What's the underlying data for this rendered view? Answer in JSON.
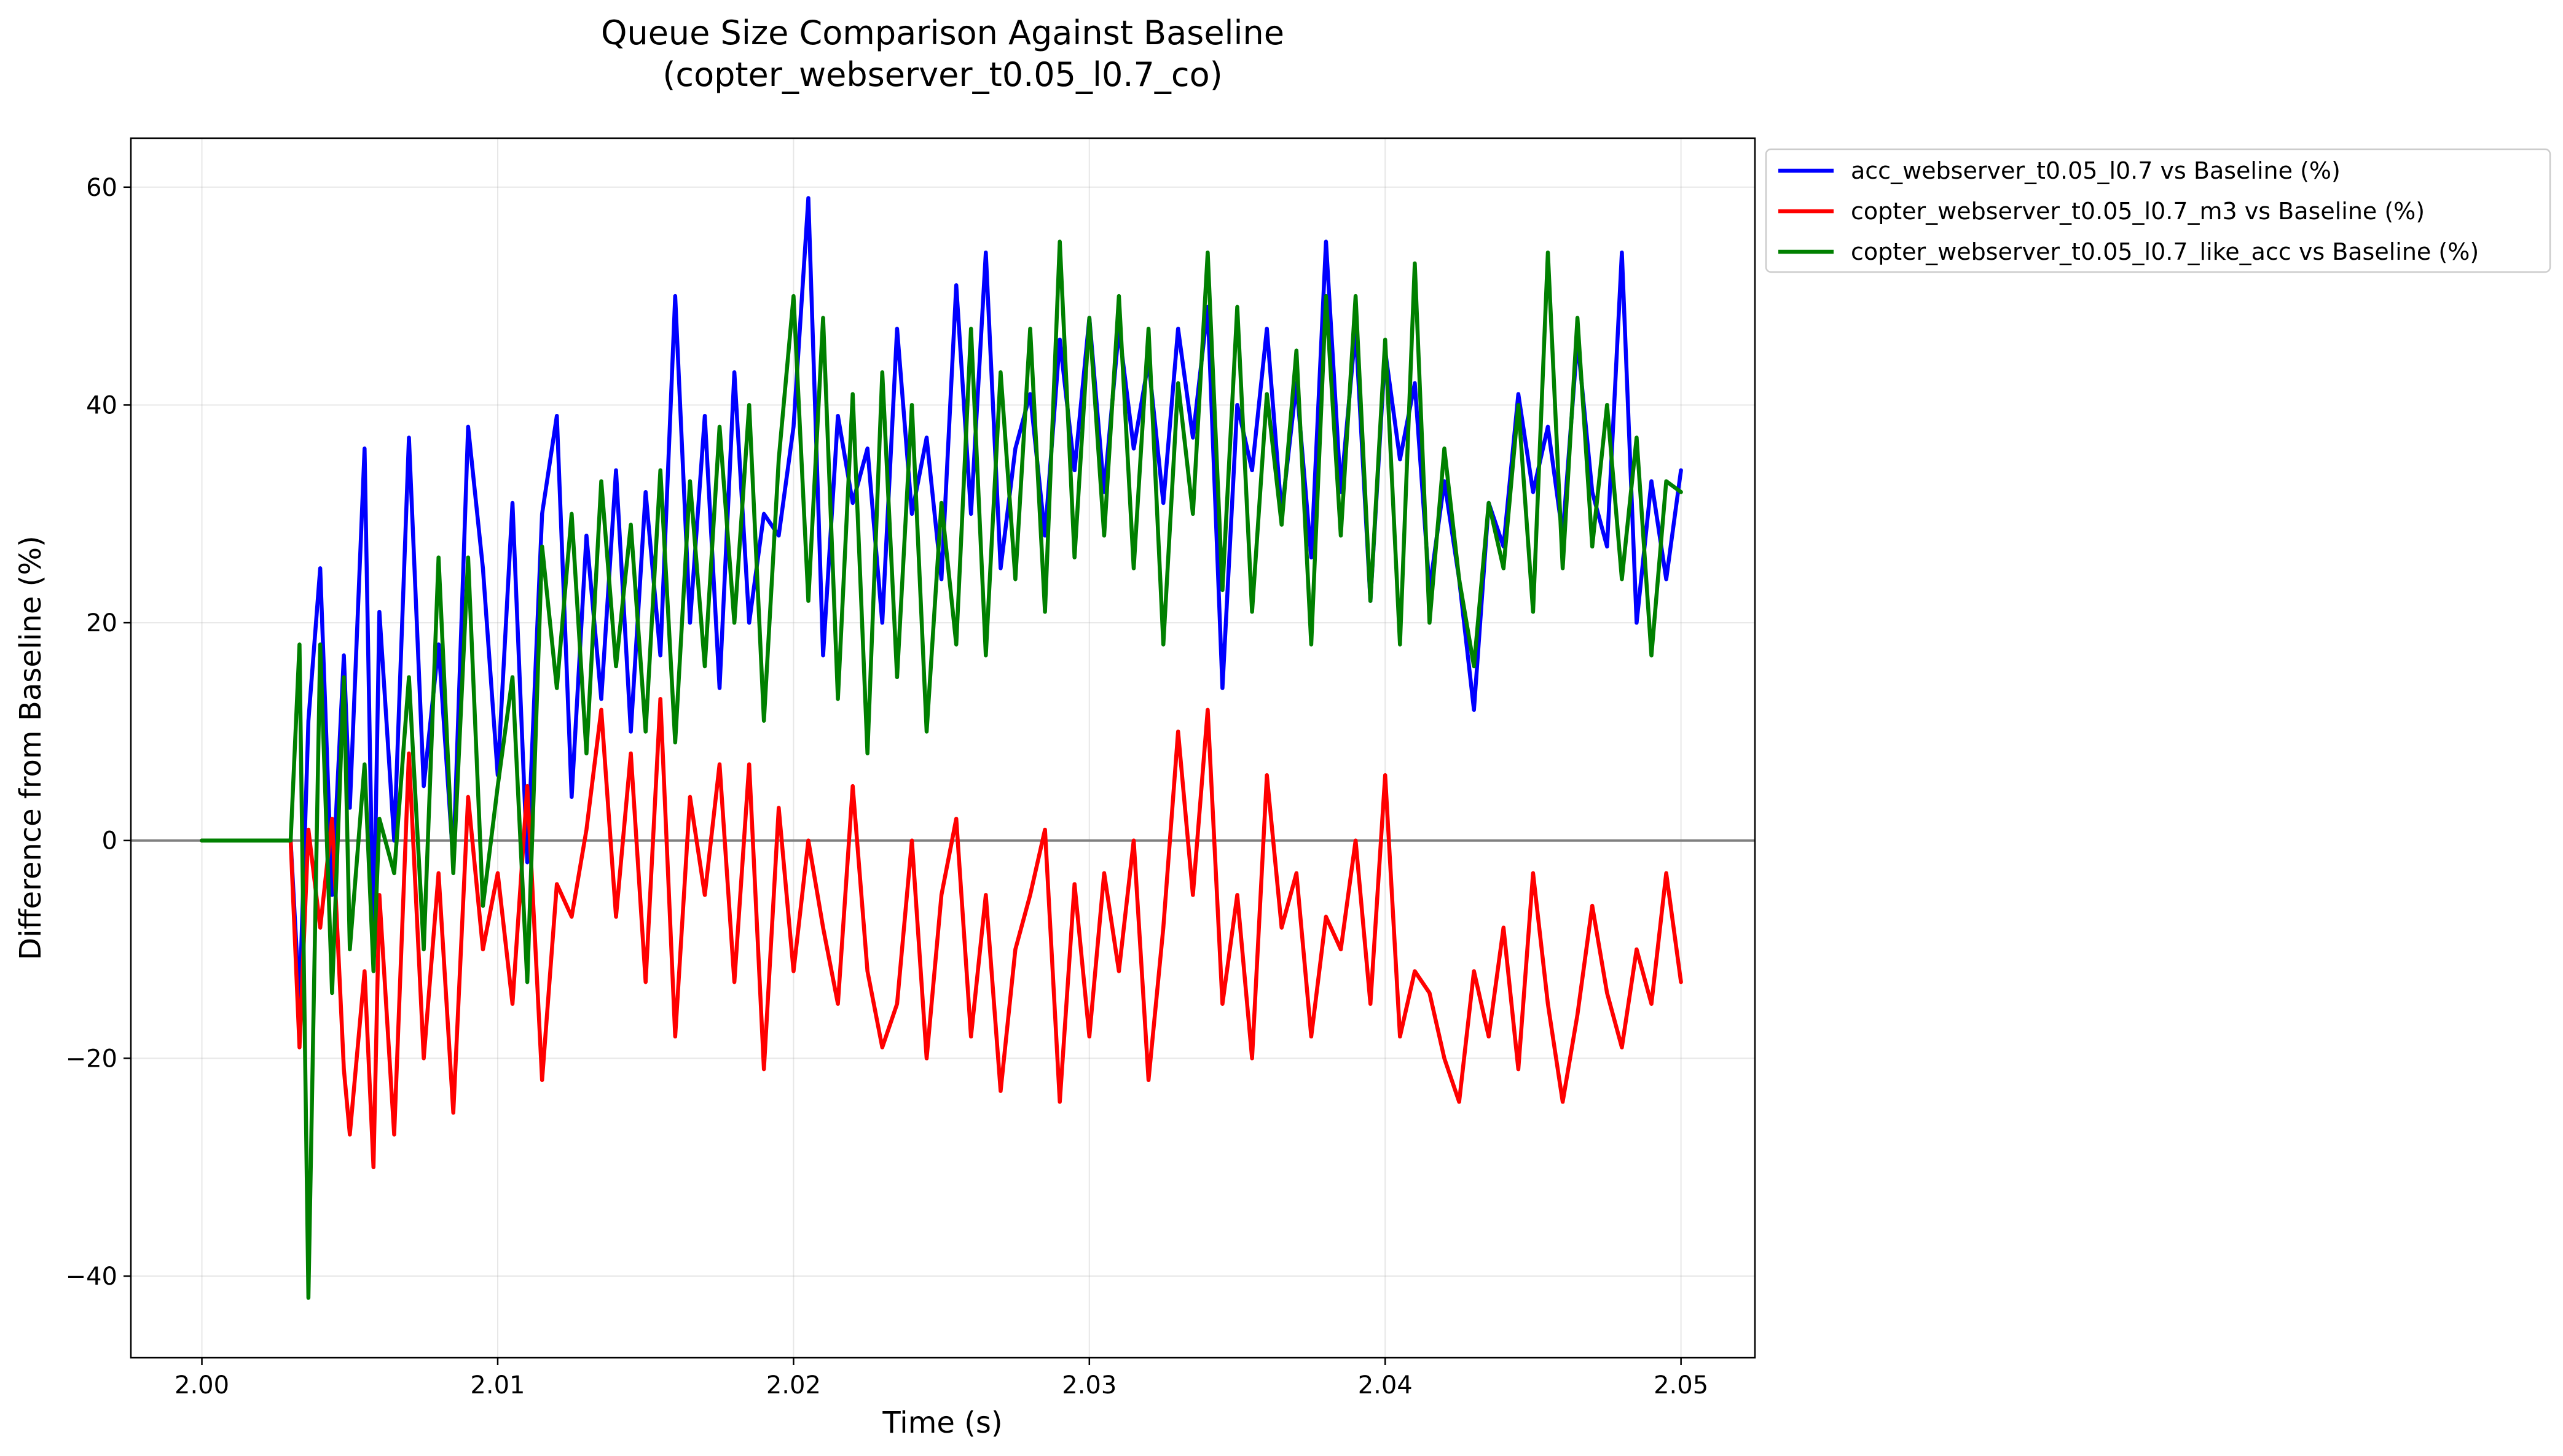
{
  "chart_data": {
    "type": "line",
    "title": "Queue Size Comparison Against Baseline",
    "subtitle": "(copter_webserver_t0.05_l0.7_co)",
    "xlabel": "Time (s)",
    "ylabel": "Difference from Baseline (%)",
    "xlim": [
      1.9976,
      2.0525
    ],
    "ylim": [
      -47.5,
      64.5
    ],
    "x_ticks": [
      2.0,
      2.01,
      2.02,
      2.03,
      2.04,
      2.05
    ],
    "x_tick_labels": [
      "2.00",
      "2.01",
      "2.02",
      "2.03",
      "2.04",
      "2.05"
    ],
    "y_ticks": [
      -40,
      -20,
      0,
      20,
      40,
      60
    ],
    "y_tick_labels": [
      "−40",
      "−20",
      "0",
      "20",
      "40",
      "60"
    ],
    "grid": true,
    "reference_line": 0,
    "legend_position": "outside-top-right",
    "series": [
      {
        "name": "acc_webserver_t0.05_l0.7 vs Baseline (%)",
        "color": "#0000ff",
        "x": [
          2.0,
          2.003,
          2.0033,
          2.0036,
          2.004,
          2.0044,
          2.0048,
          2.005,
          2.0055,
          2.0058,
          2.006,
          2.0065,
          2.007,
          2.0075,
          2.008,
          2.0085,
          2.009,
          2.0095,
          2.01,
          2.0105,
          2.011,
          2.0115,
          2.012,
          2.0125,
          2.013,
          2.0135,
          2.014,
          2.0145,
          2.015,
          2.0155,
          2.016,
          2.0165,
          2.017,
          2.0175,
          2.018,
          2.0185,
          2.019,
          2.0195,
          2.02,
          2.0205,
          2.021,
          2.0215,
          2.022,
          2.0225,
          2.023,
          2.0235,
          2.024,
          2.0245,
          2.025,
          2.0255,
          2.026,
          2.0265,
          2.027,
          2.0275,
          2.028,
          2.0285,
          2.029,
          2.0295,
          2.03,
          2.0305,
          2.031,
          2.0315,
          2.032,
          2.0325,
          2.033,
          2.0335,
          2.034,
          2.0345,
          2.035,
          2.0355,
          2.036,
          2.0365,
          2.037,
          2.0375,
          2.038,
          2.0385,
          2.039,
          2.0395,
          2.04,
          2.0405,
          2.041,
          2.0415,
          2.042,
          2.0425,
          2.043,
          2.0435,
          2.044,
          2.0445,
          2.045,
          2.0455,
          2.046,
          2.0465,
          2.047,
          2.0475,
          2.048,
          2.0485,
          2.049,
          2.0495,
          2.05
        ],
        "values": [
          0,
          0,
          -15,
          11,
          25,
          -5,
          17,
          3,
          36,
          -10,
          21,
          0,
          37,
          5,
          18,
          -2,
          38,
          25,
          6,
          31,
          -2,
          30,
          39,
          4,
          28,
          13,
          34,
          10,
          32,
          17,
          50,
          20,
          39,
          14,
          43,
          20,
          30,
          28,
          38,
          59,
          17,
          39,
          31,
          36,
          20,
          47,
          30,
          37,
          24,
          51,
          30,
          54,
          25,
          36,
          41,
          28,
          46,
          34,
          48,
          32,
          47,
          36,
          44,
          31,
          47,
          37,
          49,
          14,
          40,
          34,
          47,
          30,
          42,
          26,
          55,
          32,
          47,
          22,
          45,
          35,
          42,
          23,
          33,
          24,
          12,
          31,
          27,
          41,
          32,
          38,
          28,
          46,
          32,
          27,
          54,
          20,
          33,
          24,
          34
        ]
      },
      {
        "name": "copter_webserver_t0.05_l0.7_m3 vs Baseline (%)",
        "color": "#ff0000",
        "x": [
          2.0,
          2.003,
          2.0033,
          2.0036,
          2.004,
          2.0044,
          2.0048,
          2.005,
          2.0055,
          2.0058,
          2.006,
          2.0065,
          2.007,
          2.0075,
          2.008,
          2.0085,
          2.009,
          2.0095,
          2.01,
          2.0105,
          2.011,
          2.0115,
          2.012,
          2.0125,
          2.013,
          2.0135,
          2.014,
          2.0145,
          2.015,
          2.0155,
          2.016,
          2.0165,
          2.017,
          2.0175,
          2.018,
          2.0185,
          2.019,
          2.0195,
          2.02,
          2.0205,
          2.021,
          2.0215,
          2.022,
          2.0225,
          2.023,
          2.0235,
          2.024,
          2.0245,
          2.025,
          2.0255,
          2.026,
          2.0265,
          2.027,
          2.0275,
          2.028,
          2.0285,
          2.029,
          2.0295,
          2.03,
          2.0305,
          2.031,
          2.0315,
          2.032,
          2.0325,
          2.033,
          2.0335,
          2.034,
          2.0345,
          2.035,
          2.0355,
          2.036,
          2.0365,
          2.037,
          2.0375,
          2.038,
          2.0385,
          2.039,
          2.0395,
          2.04,
          2.0405,
          2.041,
          2.0415,
          2.042,
          2.0425,
          2.043,
          2.0435,
          2.044,
          2.0445,
          2.045,
          2.0455,
          2.046,
          2.0465,
          2.047,
          2.0475,
          2.048,
          2.0485,
          2.049,
          2.0495,
          2.05
        ],
        "values": [
          0,
          0,
          -19,
          1,
          -8,
          2,
          -21,
          -27,
          -12,
          -30,
          -5,
          -27,
          8,
          -20,
          -3,
          -25,
          4,
          -10,
          -3,
          -15,
          5,
          -22,
          -4,
          -7,
          1,
          12,
          -7,
          8,
          -13,
          13,
          -18,
          4,
          -5,
          7,
          -13,
          7,
          -21,
          3,
          -12,
          0,
          -8,
          -15,
          5,
          -12,
          -19,
          -15,
          0,
          -20,
          -5,
          2,
          -18,
          -5,
          -23,
          -10,
          -5,
          1,
          -24,
          -4,
          -18,
          -3,
          -12,
          0,
          -22,
          -8,
          10,
          -5,
          12,
          -15,
          -5,
          -20,
          6,
          -8,
          -3,
          -18,
          -7,
          -10,
          0,
          -15,
          6,
          -18,
          -12,
          -14,
          -20,
          -24,
          -12,
          -18,
          -8,
          -21,
          -3,
          -15,
          -24,
          -16,
          -6,
          -14,
          -19,
          -10,
          -15,
          -3,
          -13
        ]
      },
      {
        "name": "copter_webserver_t0.05_l0.7_like_acc vs Baseline (%)",
        "color": "#008000",
        "x": [
          2.0,
          2.003,
          2.0033,
          2.0036,
          2.004,
          2.0044,
          2.0048,
          2.005,
          2.0055,
          2.0058,
          2.006,
          2.0065,
          2.007,
          2.0075,
          2.008,
          2.0085,
          2.009,
          2.0095,
          2.01,
          2.0105,
          2.011,
          2.0115,
          2.012,
          2.0125,
          2.013,
          2.0135,
          2.014,
          2.0145,
          2.015,
          2.0155,
          2.016,
          2.0165,
          2.017,
          2.0175,
          2.018,
          2.0185,
          2.019,
          2.0195,
          2.02,
          2.0205,
          2.021,
          2.0215,
          2.022,
          2.0225,
          2.023,
          2.0235,
          2.024,
          2.0245,
          2.025,
          2.0255,
          2.026,
          2.0265,
          2.027,
          2.0275,
          2.028,
          2.0285,
          2.029,
          2.0295,
          2.03,
          2.0305,
          2.031,
          2.0315,
          2.032,
          2.0325,
          2.033,
          2.0335,
          2.034,
          2.0345,
          2.035,
          2.0355,
          2.036,
          2.0365,
          2.037,
          2.0375,
          2.038,
          2.0385,
          2.039,
          2.0395,
          2.04,
          2.0405,
          2.041,
          2.0415,
          2.042,
          2.0425,
          2.043,
          2.0435,
          2.044,
          2.0445,
          2.045,
          2.0455,
          2.046,
          2.0465,
          2.047,
          2.0475,
          2.048,
          2.0485,
          2.049,
          2.0495,
          2.05
        ],
        "values": [
          0,
          0,
          18,
          -42,
          18,
          -14,
          15,
          -10,
          7,
          -12,
          2,
          -3,
          15,
          -10,
          26,
          -3,
          26,
          -6,
          5,
          15,
          -13,
          27,
          14,
          30,
          8,
          33,
          16,
          29,
          10,
          34,
          9,
          33,
          16,
          38,
          20,
          40,
          11,
          35,
          50,
          22,
          48,
          13,
          41,
          8,
          43,
          15,
          40,
          10,
          31,
          18,
          47,
          17,
          43,
          24,
          47,
          21,
          55,
          26,
          48,
          28,
          50,
          25,
          47,
          18,
          42,
          30,
          54,
          23,
          49,
          21,
          41,
          29,
          45,
          18,
          50,
          28,
          50,
          22,
          46,
          18,
          53,
          20,
          36,
          24,
          16,
          31,
          25,
          40,
          21,
          54,
          25,
          48,
          27,
          40,
          24,
          37,
          17,
          33,
          32
        ]
      }
    ]
  }
}
